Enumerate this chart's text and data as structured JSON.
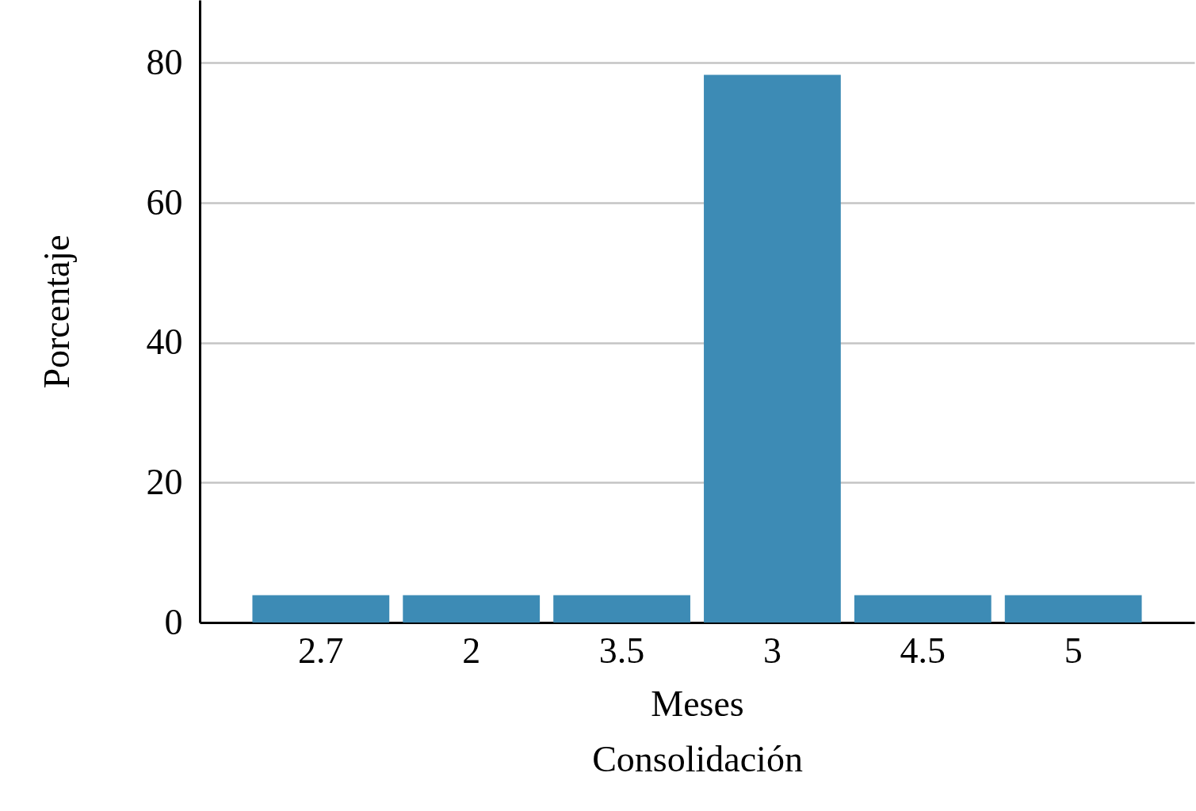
{
  "chart_data": {
    "type": "bar",
    "xlabel": "Meses\nConsolidación",
    "ylabel": "Porcentaje",
    "categories": [
      "2.7",
      "2",
      "3.5",
      "3",
      "4.5",
      "5"
    ],
    "values": [
      3.9,
      3.9,
      3.9,
      78.3,
      3.9,
      3.9
    ],
    "color": "#3d8bb5",
    "ylim": [
      0,
      89
    ],
    "yticks": [
      0,
      20,
      40,
      60,
      80
    ],
    "grid": "y"
  }
}
